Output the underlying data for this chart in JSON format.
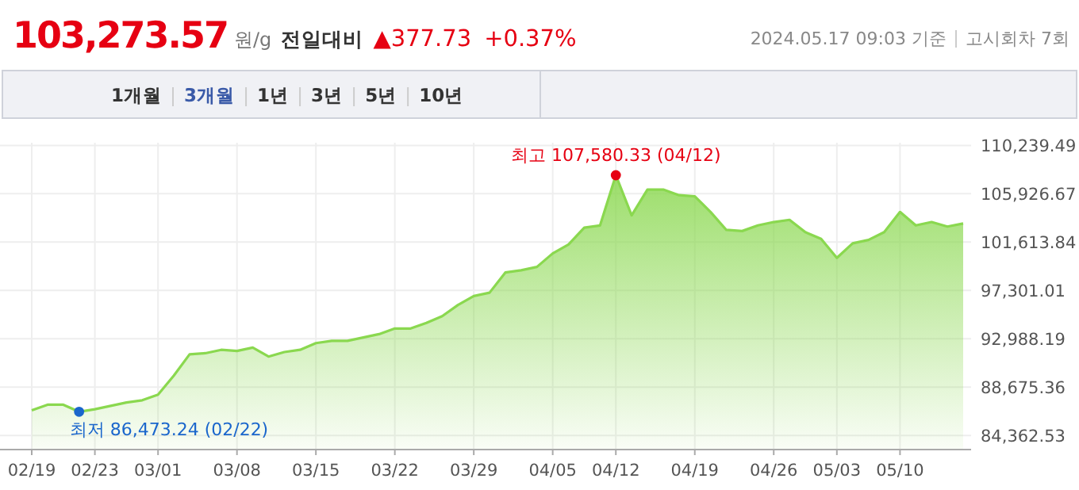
{
  "chart_data": {
    "type": "area",
    "title": "103,273.57",
    "color": "#8ad84f",
    "annotations": [
      "원/g",
      "전일대비",
      "▲377.73",
      "+0.37%",
      "2024.05.17 09:03 기준",
      "고시회차 7회",
      "1개월",
      "3개월",
      "1년",
      "3년",
      "5년",
      "10년",
      "최고 107,580.33 (04/12)",
      "최저 86,473.24 (02/22)"
    ],
    "categories": [
      "02/19",
      null,
      null,
      null,
      "02/23",
      null,
      null,
      null,
      "03/01",
      null,
      null,
      null,
      null,
      "03/08",
      null,
      null,
      null,
      null,
      "03/15",
      null,
      null,
      null,
      null,
      "03/22",
      null,
      null,
      null,
      null,
      "03/29",
      null,
      null,
      null,
      null,
      "04/05",
      null,
      null,
      null,
      "04/12",
      null,
      null,
      null,
      null,
      "04/19",
      null,
      null,
      null,
      null,
      "04/26",
      null,
      null,
      null,
      "05/03",
      null,
      null,
      null,
      "05/10",
      null,
      null,
      null,
      null
    ],
    "values": [
      86600,
      87100,
      87100,
      86473.24,
      86700,
      87000,
      87300,
      87500,
      88000,
      89700,
      91600,
      91700,
      92000,
      91900,
      92200,
      91400,
      91800,
      92000,
      92600,
      92800,
      92800,
      93100,
      93400,
      93900,
      93900,
      94400,
      95000,
      96000,
      96800,
      97100,
      98900,
      99100,
      99400,
      100600,
      101400,
      102900,
      103100,
      107580.33,
      104000,
      106300,
      106300,
      105800,
      105700,
      104300,
      102700,
      102600,
      103100,
      103400,
      103600,
      102500,
      101900,
      100200,
      101500,
      101800,
      102500,
      104300,
      103100,
      103400,
      103000,
      103273.57
    ],
    "ylim": [
      83170,
      110480
    ],
    "yticks": [
      {
        "value": 84362.53,
        "label": "84,362.53"
      },
      {
        "value": 88675.36,
        "label": "88,675.36"
      },
      {
        "value": 92988.19,
        "label": "92,988.19"
      },
      {
        "value": 97301.01,
        "label": "97,301.01"
      },
      {
        "value": 101613.84,
        "label": "101,613.84"
      },
      {
        "value": 105926.67,
        "label": "105,926.67"
      },
      {
        "value": 110239.49,
        "label": "110,239.49"
      }
    ],
    "grid": true
  }
}
